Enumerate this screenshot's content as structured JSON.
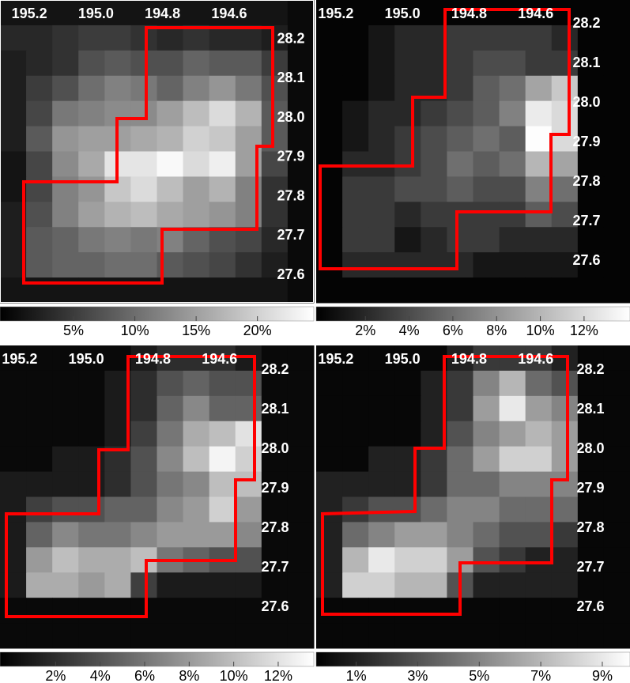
{
  "chart_data": [
    {
      "type": "heatmap",
      "xlim": [
        195.288,
        194.346
      ],
      "ylim": [
        27.53,
        28.3
      ],
      "xticks": [
        {
          "value": 195.2,
          "label": "195.2"
        },
        {
          "value": 195.0,
          "label": "195.0"
        },
        {
          "value": 194.8,
          "label": "194.8"
        },
        {
          "value": 194.6,
          "label": "194.6"
        }
      ],
      "yticks": [
        {
          "value": 28.2,
          "label": "28.2"
        },
        {
          "value": 28.1,
          "label": "28.1"
        },
        {
          "value": 28.0,
          "label": "28.0"
        },
        {
          "value": 27.9,
          "label": "27.9"
        },
        {
          "value": 27.8,
          "label": "27.8"
        },
        {
          "value": 27.7,
          "label": "27.7"
        },
        {
          "value": 27.6,
          "label": "27.6"
        }
      ],
      "clim": [
        -1,
        24.6
      ],
      "cticks": [
        {
          "value": 5,
          "label": "5%"
        },
        {
          "value": 10,
          "label": "10%"
        },
        {
          "value": 15,
          "label": "15%"
        },
        {
          "value": 20,
          "label": "20%"
        }
      ],
      "values": [
        [
          1,
          1,
          1,
          1,
          1,
          1,
          1,
          1,
          1,
          1,
          1,
          0
        ],
        [
          3,
          3,
          4,
          5,
          5,
          4,
          3,
          4,
          3,
          3,
          2,
          0
        ],
        [
          2,
          3,
          4,
          7,
          8,
          7,
          7,
          9,
          8,
          8,
          5,
          0
        ],
        [
          2,
          5,
          7,
          10,
          12,
          11,
          9,
          12,
          14,
          11,
          7,
          0
        ],
        [
          2,
          6,
          11,
          12,
          13,
          13,
          15,
          18,
          21,
          17,
          8,
          0
        ],
        [
          2,
          8,
          14,
          15,
          15,
          16,
          17,
          20,
          19,
          15,
          8,
          0
        ],
        [
          1,
          6,
          13,
          16,
          22,
          22,
          24,
          21,
          23,
          15,
          6,
          0
        ],
        [
          1,
          6,
          12,
          14,
          19,
          21,
          18,
          15,
          17,
          12,
          4,
          0
        ],
        [
          2,
          7,
          12,
          15,
          17,
          18,
          16,
          15,
          14,
          12,
          4,
          0
        ],
        [
          2,
          8,
          9,
          11,
          12,
          11,
          12,
          9,
          7,
          6,
          3,
          0
        ],
        [
          2,
          8,
          9,
          9,
          10,
          10,
          8,
          7,
          6,
          4,
          2,
          0
        ],
        [
          1,
          1,
          1,
          1,
          1,
          1,
          1,
          1,
          1,
          1,
          1,
          0
        ]
      ]
    },
    {
      "type": "heatmap",
      "xlim": [
        195.259,
        194.317
      ],
      "ylim": [
        27.494,
        28.26
      ],
      "xticks": [
        {
          "value": 195.2,
          "label": "195.2"
        },
        {
          "value": 195.0,
          "label": "195.0"
        },
        {
          "value": 194.8,
          "label": "194.8"
        },
        {
          "value": 194.6,
          "label": "194.6"
        }
      ],
      "yticks": [
        {
          "value": 28.2,
          "label": "28.2"
        },
        {
          "value": 28.1,
          "label": "28.1"
        },
        {
          "value": 28.0,
          "label": "28.0"
        },
        {
          "value": 27.9,
          "label": "27.9"
        },
        {
          "value": 27.8,
          "label": "27.8"
        },
        {
          "value": 27.7,
          "label": "27.7"
        },
        {
          "value": 27.6,
          "label": "27.6"
        }
      ],
      "clim": [
        -0.25,
        14.1
      ],
      "cticks": [
        {
          "value": 2,
          "label": "2%"
        },
        {
          "value": 4,
          "label": "4%"
        },
        {
          "value": 6,
          "label": "6%"
        },
        {
          "value": 8,
          "label": "8%"
        },
        {
          "value": 10,
          "label": "10%"
        },
        {
          "value": 12,
          "label": "12%"
        }
      ],
      "values": [
        [
          0,
          0,
          0,
          0,
          0,
          0,
          0,
          0,
          0,
          0,
          0,
          0
        ],
        [
          0,
          0,
          1,
          2,
          2,
          3,
          3,
          3,
          3,
          2,
          0,
          0
        ],
        [
          0,
          0,
          1,
          2,
          2,
          3,
          4,
          4,
          3,
          3,
          0,
          0
        ],
        [
          0,
          0,
          1,
          2,
          2,
          3,
          5,
          6,
          9,
          11,
          0,
          0
        ],
        [
          0,
          1,
          2,
          2,
          3,
          4,
          5,
          7,
          13,
          12,
          0,
          0
        ],
        [
          0,
          1,
          2,
          3,
          4,
          5,
          6,
          5,
          14,
          12,
          0,
          0
        ],
        [
          0,
          2,
          2,
          3,
          4,
          6,
          5,
          6,
          10,
          9,
          0,
          0
        ],
        [
          0,
          3,
          3,
          4,
          4,
          5,
          4,
          4,
          7,
          6,
          0,
          0
        ],
        [
          0,
          3,
          3,
          2,
          3,
          3,
          3,
          3,
          5,
          4,
          0,
          0
        ],
        [
          0,
          3,
          3,
          1,
          2,
          3,
          3,
          2,
          2,
          2,
          0,
          0
        ],
        [
          0,
          2,
          2,
          2,
          2,
          2,
          1,
          1,
          1,
          1,
          0,
          0
        ],
        [
          0,
          0,
          0,
          0,
          0,
          0,
          0,
          0,
          0,
          0,
          0,
          0
        ]
      ]
    },
    {
      "type": "heatmap",
      "xlim": [
        195.259,
        194.317
      ],
      "ylim": [
        27.496,
        28.262
      ],
      "xticks": [
        {
          "value": 195.2,
          "label": "195.2"
        },
        {
          "value": 195.0,
          "label": "195.0"
        },
        {
          "value": 194.8,
          "label": "194.8"
        },
        {
          "value": 194.6,
          "label": "194.6"
        }
      ],
      "yticks": [
        {
          "value": 28.2,
          "label": "28.2"
        },
        {
          "value": 28.1,
          "label": "28.1"
        },
        {
          "value": 28.0,
          "label": "28.0"
        },
        {
          "value": 27.9,
          "label": "27.9"
        },
        {
          "value": 27.8,
          "label": "27.8"
        },
        {
          "value": 27.7,
          "label": "27.7"
        },
        {
          "value": 27.6,
          "label": "27.6"
        }
      ],
      "clim": [
        -0.5,
        13.6
      ],
      "cticks": [
        {
          "value": 2,
          "label": "2%"
        },
        {
          "value": 4,
          "label": "4%"
        },
        {
          "value": 6,
          "label": "6%"
        },
        {
          "value": 8,
          "label": "8%"
        },
        {
          "value": 10,
          "label": "10%"
        },
        {
          "value": 12,
          "label": "12%"
        }
      ],
      "values": [
        [
          0,
          0,
          0,
          0,
          0,
          1,
          2,
          2,
          2,
          1,
          0,
          0
        ],
        [
          0,
          0,
          0,
          0,
          1,
          2,
          4,
          5,
          4,
          4,
          0,
          0
        ],
        [
          0,
          0,
          0,
          0,
          1,
          2,
          5,
          7,
          5,
          5,
          0,
          0
        ],
        [
          0,
          0,
          0,
          0,
          1,
          3,
          6,
          9,
          10,
          12,
          0,
          0
        ],
        [
          0,
          0,
          1,
          1,
          2,
          4,
          7,
          10,
          13,
          11,
          0,
          0
        ],
        [
          1,
          1,
          1,
          1,
          2,
          4,
          6,
          7,
          10,
          10,
          0,
          0
        ],
        [
          1,
          3,
          4,
          4,
          5,
          5,
          7,
          8,
          11,
          8,
          0,
          0
        ],
        [
          1,
          5,
          7,
          6,
          6,
          7,
          8,
          8,
          8,
          7,
          0,
          0
        ],
        [
          1,
          8,
          10,
          9,
          9,
          10,
          6,
          5,
          4,
          4,
          0,
          0
        ],
        [
          1,
          9,
          9,
          8,
          9,
          3,
          1,
          1,
          1,
          1,
          0,
          0
        ],
        [
          0,
          0,
          0,
          0,
          0,
          0,
          0,
          0,
          0,
          0,
          0,
          0
        ],
        [
          0,
          0,
          0,
          0,
          0,
          0,
          0,
          0,
          0,
          0,
          0,
          0
        ]
      ]
    },
    {
      "type": "heatmap",
      "xlim": [
        195.259,
        194.317
      ],
      "ylim": [
        27.496,
        28.262
      ],
      "xticks": [
        {
          "value": 195.2,
          "label": "195.2"
        },
        {
          "value": 195.0,
          "label": "195.0"
        },
        {
          "value": 194.8,
          "label": "194.8"
        },
        {
          "value": 194.6,
          "label": "194.6"
        }
      ],
      "yticks": [
        {
          "value": 28.2,
          "label": "28.2"
        },
        {
          "value": 28.1,
          "label": "28.1"
        },
        {
          "value": 28.0,
          "label": "28.0"
        },
        {
          "value": 27.9,
          "label": "27.9"
        },
        {
          "value": 27.8,
          "label": "27.8"
        },
        {
          "value": 27.7,
          "label": "27.7"
        },
        {
          "value": 27.6,
          "label": "27.6"
        }
      ],
      "clim": [
        -0.3,
        9.9
      ],
      "cticks": [
        {
          "value": 1,
          "label": "1%"
        },
        {
          "value": 3,
          "label": "3%"
        },
        {
          "value": 5,
          "label": "5%"
        },
        {
          "value": 7,
          "label": "7%"
        },
        {
          "value": 9,
          "label": "9%"
        }
      ],
      "values": [
        [
          0,
          0,
          0,
          0,
          0,
          1,
          2,
          2,
          2,
          1,
          0,
          0
        ],
        [
          0,
          0,
          0,
          0,
          1,
          2,
          5,
          7,
          4,
          3,
          0,
          0
        ],
        [
          0,
          0,
          0,
          0,
          1,
          2,
          6,
          9,
          6,
          5,
          0,
          0
        ],
        [
          0,
          0,
          0,
          0,
          1,
          3,
          5,
          6,
          7,
          6,
          0,
          0
        ],
        [
          0,
          0,
          1,
          1,
          2,
          4,
          6,
          8,
          8,
          6,
          0,
          0
        ],
        [
          1,
          1,
          1,
          1,
          2,
          4,
          4,
          5,
          5,
          5,
          0,
          0
        ],
        [
          1,
          2,
          3,
          3,
          4,
          5,
          5,
          4,
          4,
          4,
          0,
          0
        ],
        [
          1,
          4,
          5,
          6,
          6,
          5,
          4,
          3,
          3,
          2,
          0,
          0
        ],
        [
          1,
          7,
          9,
          8,
          8,
          6,
          3,
          2,
          1,
          1,
          0,
          0
        ],
        [
          1,
          8,
          8,
          7,
          7,
          3,
          1,
          1,
          1,
          1,
          0,
          0
        ],
        [
          0,
          0,
          0,
          0,
          0,
          0,
          0,
          0,
          0,
          0,
          0,
          0
        ],
        [
          0,
          0,
          0,
          0,
          0,
          0,
          0,
          0,
          0,
          0,
          0,
          0
        ]
      ]
    }
  ]
}
